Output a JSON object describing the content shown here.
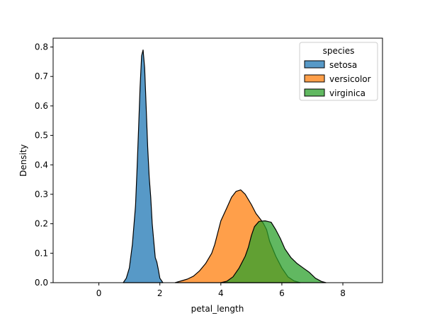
{
  "chart_data": {
    "type": "area",
    "subtype": "stacked-kde",
    "title": "",
    "xlabel": "petal_length",
    "ylabel": "Density",
    "xlim": [
      -1.5,
      9.3
    ],
    "ylim": [
      0,
      0.83
    ],
    "xticks": [
      0,
      2,
      4,
      6,
      8
    ],
    "xtick_labels": [
      "0",
      "2",
      "4",
      "6",
      "8"
    ],
    "yticks": [
      0.0,
      0.1,
      0.2,
      0.3,
      0.4,
      0.5,
      0.6,
      0.7,
      0.8
    ],
    "ytick_labels": [
      "0.0",
      "0.1",
      "0.2",
      "0.3",
      "0.4",
      "0.5",
      "0.6",
      "0.7",
      "0.8"
    ],
    "grid": false,
    "legend": {
      "title": "species",
      "position": "top-right",
      "entries": [
        "setosa",
        "versicolor",
        "virginica"
      ]
    },
    "series": [
      {
        "name": "setosa",
        "color": "#1f77b4",
        "points": [
          [
            0.8,
            0.0
          ],
          [
            0.9,
            0.015
          ],
          [
            1.0,
            0.05
          ],
          [
            1.1,
            0.13
          ],
          [
            1.2,
            0.26
          ],
          [
            1.25,
            0.38
          ],
          [
            1.3,
            0.52
          ],
          [
            1.35,
            0.66
          ],
          [
            1.4,
            0.77
          ],
          [
            1.45,
            0.79
          ],
          [
            1.5,
            0.73
          ],
          [
            1.55,
            0.6
          ],
          [
            1.6,
            0.46
          ],
          [
            1.65,
            0.36
          ],
          [
            1.7,
            0.29
          ],
          [
            1.75,
            0.2
          ],
          [
            1.8,
            0.14
          ],
          [
            1.85,
            0.085
          ],
          [
            1.9,
            0.07
          ],
          [
            1.95,
            0.045
          ],
          [
            2.0,
            0.015
          ],
          [
            2.1,
            0.0
          ]
        ]
      },
      {
        "name": "versicolor",
        "color": "#ff7f0e",
        "points": [
          [
            2.5,
            0.0
          ],
          [
            2.7,
            0.006
          ],
          [
            2.9,
            0.012
          ],
          [
            3.1,
            0.022
          ],
          [
            3.3,
            0.04
          ],
          [
            3.5,
            0.065
          ],
          [
            3.7,
            0.1
          ],
          [
            3.8,
            0.13
          ],
          [
            3.9,
            0.17
          ],
          [
            4.0,
            0.21
          ],
          [
            4.2,
            0.255
          ],
          [
            4.35,
            0.29
          ],
          [
            4.5,
            0.31
          ],
          [
            4.65,
            0.315
          ],
          [
            4.8,
            0.3
          ],
          [
            5.0,
            0.265
          ],
          [
            5.15,
            0.235
          ],
          [
            5.3,
            0.215
          ],
          [
            5.4,
            0.2
          ],
          [
            5.5,
            0.18
          ],
          [
            5.6,
            0.14
          ],
          [
            5.8,
            0.09
          ],
          [
            6.0,
            0.05
          ],
          [
            6.2,
            0.02
          ],
          [
            6.4,
            0.006
          ],
          [
            6.6,
            0.0
          ]
        ]
      },
      {
        "name": "virginica",
        "color": "#2ca02c",
        "points": [
          [
            4.0,
            0.0
          ],
          [
            4.2,
            0.005
          ],
          [
            4.4,
            0.02
          ],
          [
            4.6,
            0.05
          ],
          [
            4.8,
            0.09
          ],
          [
            4.9,
            0.12
          ],
          [
            5.0,
            0.16
          ],
          [
            5.1,
            0.19
          ],
          [
            5.25,
            0.208
          ],
          [
            5.45,
            0.21
          ],
          [
            5.65,
            0.205
          ],
          [
            5.8,
            0.18
          ],
          [
            5.95,
            0.15
          ],
          [
            6.1,
            0.115
          ],
          [
            6.3,
            0.085
          ],
          [
            6.5,
            0.065
          ],
          [
            6.7,
            0.05
          ],
          [
            6.9,
            0.035
          ],
          [
            7.1,
            0.015
          ],
          [
            7.3,
            0.004
          ],
          [
            7.45,
            0.0
          ]
        ]
      }
    ]
  }
}
